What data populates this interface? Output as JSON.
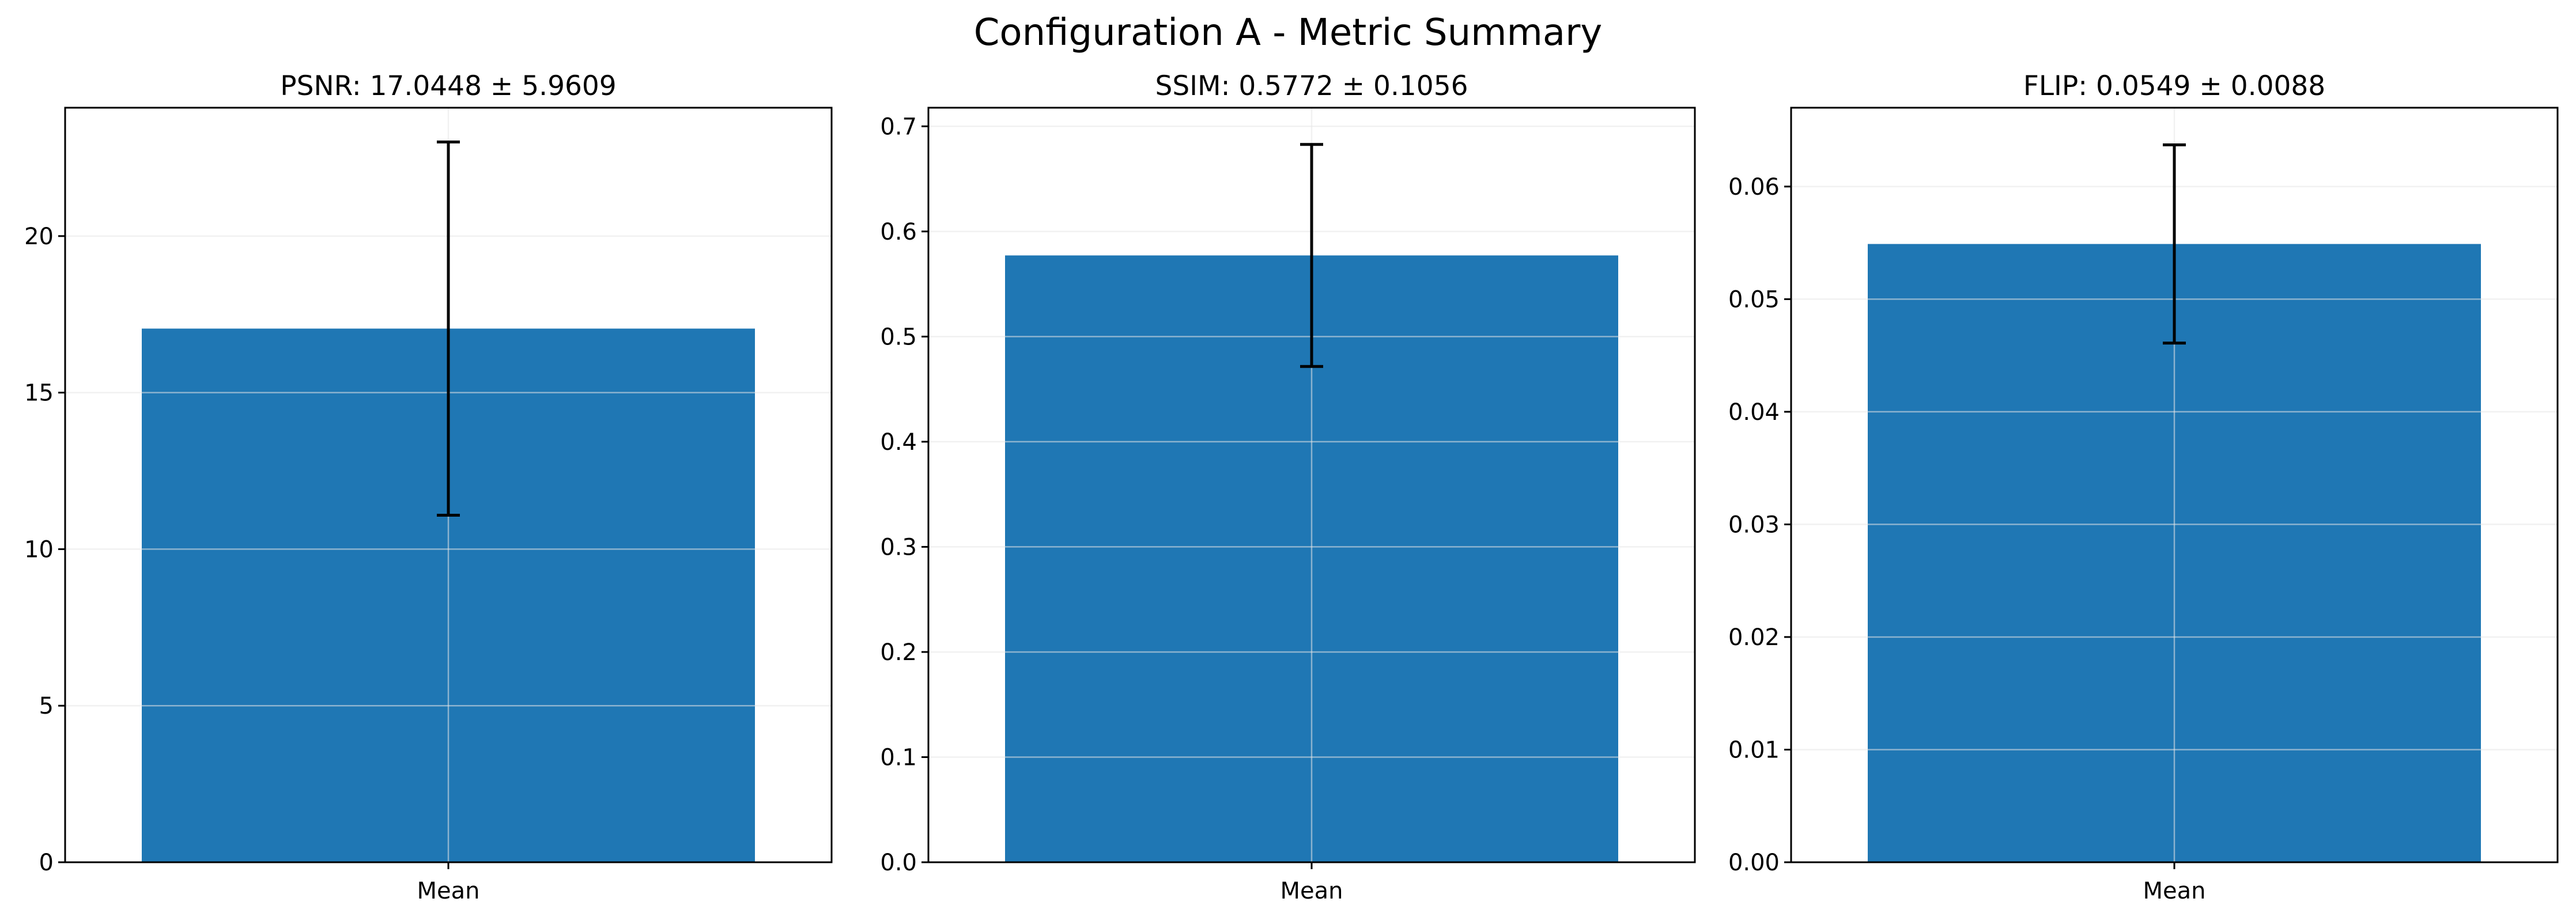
{
  "figure": {
    "title": "Configuration A - Metric Summary"
  },
  "colors": {
    "bar": "#1f77b4",
    "error_bar": "#000000",
    "grid": "#e6e6e6",
    "axes": "#000000"
  },
  "chart_data": [
    {
      "type": "bar",
      "title": "PSNR: 17.0448 ± 5.9609",
      "categories": [
        "Mean"
      ],
      "values": [
        17.0448
      ],
      "errors": [
        5.9609
      ],
      "xlabel": "",
      "ylabel": "",
      "ylim": [
        0,
        24.1
      ],
      "yticks": [
        0,
        5,
        10,
        15,
        20
      ],
      "ytick_labels": [
        "0",
        "5",
        "10",
        "15",
        "20"
      ],
      "grid": true
    },
    {
      "type": "bar",
      "title": "SSIM: 0.5772 ± 0.1056",
      "categories": [
        "Mean"
      ],
      "values": [
        0.5772
      ],
      "errors": [
        0.1056
      ],
      "xlabel": "",
      "ylabel": "",
      "ylim": [
        0,
        0.7177
      ],
      "yticks": [
        0,
        0.1,
        0.2,
        0.3,
        0.4,
        0.5,
        0.6,
        0.7
      ],
      "ytick_labels": [
        "0.0",
        "0.1",
        "0.2",
        "0.3",
        "0.4",
        "0.5",
        "0.6",
        "0.7"
      ],
      "grid": true
    },
    {
      "type": "bar",
      "title": "FLIP: 0.0549 ± 0.0088",
      "categories": [
        "Mean"
      ],
      "values": [
        0.0549
      ],
      "errors": [
        0.0088
      ],
      "xlabel": "",
      "ylabel": "",
      "ylim": [
        0,
        0.067
      ],
      "yticks": [
        0,
        0.01,
        0.02,
        0.03,
        0.04,
        0.05,
        0.06
      ],
      "ytick_labels": [
        "0.00",
        "0.01",
        "0.02",
        "0.03",
        "0.04",
        "0.05",
        "0.06"
      ],
      "grid": true
    }
  ]
}
